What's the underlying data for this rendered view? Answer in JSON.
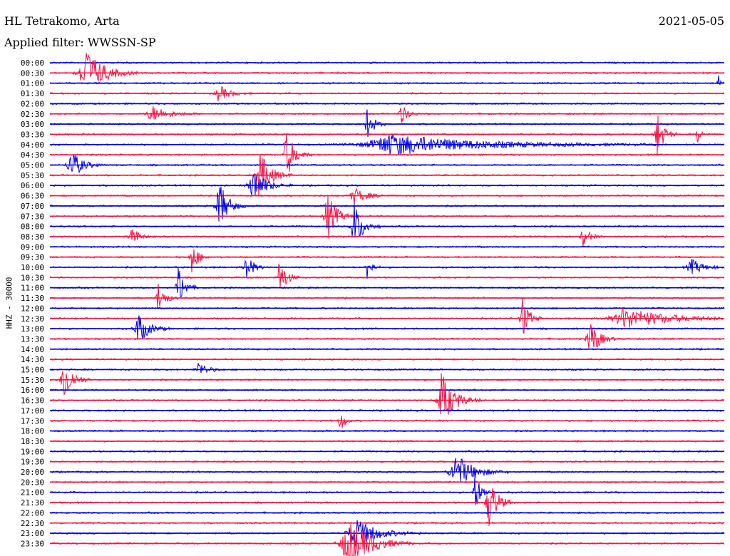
{
  "header": {
    "station": "HL Tetrakomo, Arta",
    "filter": "Applied filter: WWSSN-SP",
    "date": "2021-05-05"
  },
  "axis": {
    "ylabel": "HHZ - 30000"
  },
  "colors": {
    "even_trace": "#0000ee",
    "odd_trace": "#ff1040",
    "background": "#ffffff",
    "text": "#000000"
  },
  "chart_data": {
    "type": "line",
    "title": "HL Tetrakomo, Arta",
    "subtitle": "Applied filter: WWSSN-SP",
    "date": "2021-05-05",
    "ylabel": "HHZ - 30000",
    "trace_labels": [
      "00:00",
      "00:30",
      "01:00",
      "01:30",
      "02:00",
      "02:30",
      "03:00",
      "03:30",
      "04:00",
      "04:30",
      "05:00",
      "05:30",
      "06:00",
      "06:30",
      "07:00",
      "07:30",
      "08:00",
      "08:30",
      "09:00",
      "09:30",
      "10:00",
      "10:30",
      "11:00",
      "11:30",
      "12:00",
      "12:30",
      "13:00",
      "13:30",
      "14:00",
      "14:30",
      "15:00",
      "15:30",
      "16:00",
      "16:30",
      "17:00",
      "17:30",
      "18:00",
      "18:30",
      "19:00",
      "19:30",
      "20:00",
      "20:30",
      "21:00",
      "21:30",
      "22:00",
      "22:30",
      "23:00",
      "23:30"
    ],
    "trace_colors": [
      "blue",
      "red"
    ],
    "events": [
      {
        "trace": "00:30",
        "pos": 0.05,
        "amp": 1.0,
        "dur": 0.08
      },
      {
        "trace": "01:00",
        "pos": 0.99,
        "amp": 0.5,
        "dur": 0.01
      },
      {
        "trace": "01:30",
        "pos": 0.25,
        "amp": 0.3,
        "dur": 0.05
      },
      {
        "trace": "02:30",
        "pos": 0.15,
        "amp": 0.3,
        "dur": 0.08
      },
      {
        "trace": "02:30",
        "pos": 0.52,
        "amp": 0.4,
        "dur": 0.03
      },
      {
        "trace": "03:00",
        "pos": 0.47,
        "amp": 0.6,
        "dur": 0.03
      },
      {
        "trace": "03:30",
        "pos": 0.9,
        "amp": 0.9,
        "dur": 0.03
      },
      {
        "trace": "03:30",
        "pos": 0.96,
        "amp": 0.3,
        "dur": 0.02
      },
      {
        "trace": "04:00",
        "pos": 0.5,
        "amp": 0.4,
        "dur": 0.4
      },
      {
        "trace": "04:30",
        "pos": 0.35,
        "amp": 0.9,
        "dur": 0.04
      },
      {
        "trace": "05:00",
        "pos": 0.03,
        "amp": 0.6,
        "dur": 0.05
      },
      {
        "trace": "05:30",
        "pos": 0.31,
        "amp": 0.9,
        "dur": 0.05
      },
      {
        "trace": "06:00",
        "pos": 0.3,
        "amp": 0.6,
        "dur": 0.06
      },
      {
        "trace": "06:30",
        "pos": 0.45,
        "amp": 0.3,
        "dur": 0.06
      },
      {
        "trace": "07:00",
        "pos": 0.25,
        "amp": 1.0,
        "dur": 0.04
      },
      {
        "trace": "07:30",
        "pos": 0.41,
        "amp": 1.0,
        "dur": 0.04
      },
      {
        "trace": "08:00",
        "pos": 0.45,
        "amp": 1.0,
        "dur": 0.04
      },
      {
        "trace": "08:30",
        "pos": 0.12,
        "amp": 0.5,
        "dur": 0.03
      },
      {
        "trace": "08:30",
        "pos": 0.79,
        "amp": 0.4,
        "dur": 0.03
      },
      {
        "trace": "09:30",
        "pos": 0.21,
        "amp": 0.6,
        "dur": 0.03
      },
      {
        "trace": "10:00",
        "pos": 0.29,
        "amp": 0.6,
        "dur": 0.03
      },
      {
        "trace": "10:00",
        "pos": 0.47,
        "amp": 0.5,
        "dur": 0.02
      },
      {
        "trace": "10:00",
        "pos": 0.95,
        "amp": 0.3,
        "dur": 0.06
      },
      {
        "trace": "10:30",
        "pos": 0.34,
        "amp": 0.8,
        "dur": 0.03
      },
      {
        "trace": "11:00",
        "pos": 0.19,
        "amp": 0.8,
        "dur": 0.03
      },
      {
        "trace": "11:30",
        "pos": 0.16,
        "amp": 0.6,
        "dur": 0.03
      },
      {
        "trace": "12:30",
        "pos": 0.7,
        "amp": 0.9,
        "dur": 0.03
      },
      {
        "trace": "12:30",
        "pos": 0.85,
        "amp": 0.4,
        "dur": 0.2
      },
      {
        "trace": "13:00",
        "pos": 0.13,
        "amp": 0.6,
        "dur": 0.05
      },
      {
        "trace": "13:30",
        "pos": 0.8,
        "amp": 0.8,
        "dur": 0.04
      },
      {
        "trace": "15:00",
        "pos": 0.22,
        "amp": 0.3,
        "dur": 0.04
      },
      {
        "trace": "15:30",
        "pos": 0.02,
        "amp": 0.9,
        "dur": 0.04
      },
      {
        "trace": "16:30",
        "pos": 0.58,
        "amp": 1.0,
        "dur": 0.06
      },
      {
        "trace": "17:30",
        "pos": 0.43,
        "amp": 0.5,
        "dur": 0.02
      },
      {
        "trace": "20:00",
        "pos": 0.6,
        "amp": 0.7,
        "dur": 0.08
      },
      {
        "trace": "21:00",
        "pos": 0.63,
        "amp": 0.7,
        "dur": 0.03
      },
      {
        "trace": "21:30",
        "pos": 0.65,
        "amp": 1.0,
        "dur": 0.04
      },
      {
        "trace": "23:00",
        "pos": 0.45,
        "amp": 0.6,
        "dur": 0.1
      },
      {
        "trace": "23:30",
        "pos": 0.44,
        "amp": 1.0,
        "dur": 0.1
      }
    ]
  }
}
